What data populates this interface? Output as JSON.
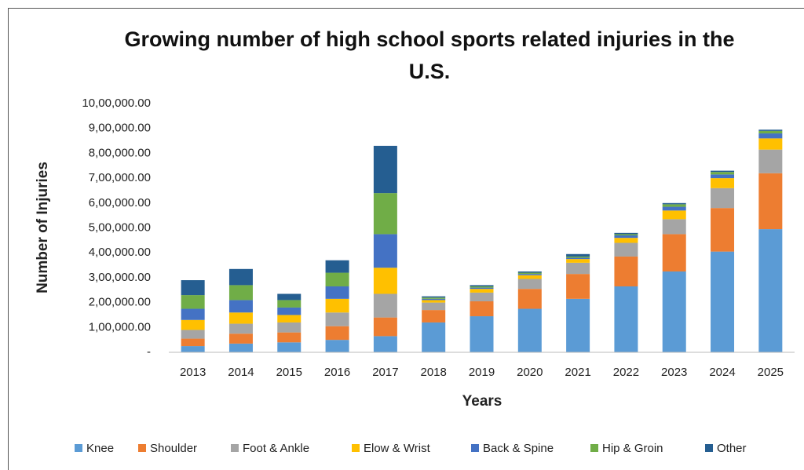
{
  "chart_data": {
    "type": "stacked_bar",
    "title": "Growing number of high school sports related injuries in the U.S.",
    "xlabel": "Years",
    "ylabel": "Number of Injuries",
    "categories": [
      "2013",
      "2014",
      "2015",
      "2016",
      "2017",
      "2018",
      "2019",
      "2020",
      "2021",
      "2022",
      "2023",
      "2024",
      "2025"
    ],
    "series": [
      {
        "name": "Knee",
        "color": "#5b9bd5",
        "values": [
          25000,
          35000,
          40000,
          50000,
          65000,
          120000,
          145000,
          175000,
          215000,
          265000,
          325000,
          405000,
          495000
        ]
      },
      {
        "name": "Shoulder",
        "color": "#ed7d31",
        "values": [
          30000,
          40000,
          40000,
          55000,
          75000,
          50000,
          60000,
          80000,
          100000,
          120000,
          150000,
          175000,
          225000
        ]
      },
      {
        "name": "Foot & Ankle",
        "color": "#a5a5a5",
        "values": [
          35000,
          40000,
          40000,
          55000,
          95000,
          30000,
          35000,
          40000,
          45000,
          55000,
          60000,
          80000,
          95000
        ]
      },
      {
        "name": "Elow & Wrist",
        "color": "#ffc000",
        "values": [
          40000,
          45000,
          30000,
          55000,
          105000,
          10000,
          15000,
          15000,
          15000,
          20000,
          35000,
          40000,
          45000
        ]
      },
      {
        "name": "Back & Spine",
        "color": "#4472c4",
        "values": [
          45000,
          50000,
          30000,
          50000,
          135000,
          5000,
          5000,
          5000,
          5000,
          10000,
          15000,
          15000,
          20000
        ]
      },
      {
        "name": "Hip & Groin",
        "color": "#70ad47",
        "values": [
          55000,
          60000,
          30000,
          55000,
          165000,
          5000,
          5000,
          5000,
          5000,
          5000,
          10000,
          10000,
          10000
        ]
      },
      {
        "name": "Other",
        "color": "#255e91",
        "values": [
          60000,
          65000,
          25000,
          50000,
          190000,
          5000,
          5000,
          5000,
          10000,
          5000,
          5000,
          5000,
          5000
        ]
      }
    ],
    "ylim": [
      0,
      1000000
    ],
    "yticks": [
      {
        "value": 0,
        "label": "-"
      },
      {
        "value": 100000,
        "label": "1,00,000.00"
      },
      {
        "value": 200000,
        "label": "2,00,000.00"
      },
      {
        "value": 300000,
        "label": "3,00,000.00"
      },
      {
        "value": 400000,
        "label": "4,00,000.00"
      },
      {
        "value": 500000,
        "label": "5,00,000.00"
      },
      {
        "value": 600000,
        "label": "6,00,000.00"
      },
      {
        "value": 700000,
        "label": "7,00,000.00"
      },
      {
        "value": 800000,
        "label": "8,00,000.00"
      },
      {
        "value": 900000,
        "label": "9,00,000.00"
      },
      {
        "value": 1000000,
        "label": "10,00,000.00"
      }
    ],
    "legend": "bottom"
  }
}
